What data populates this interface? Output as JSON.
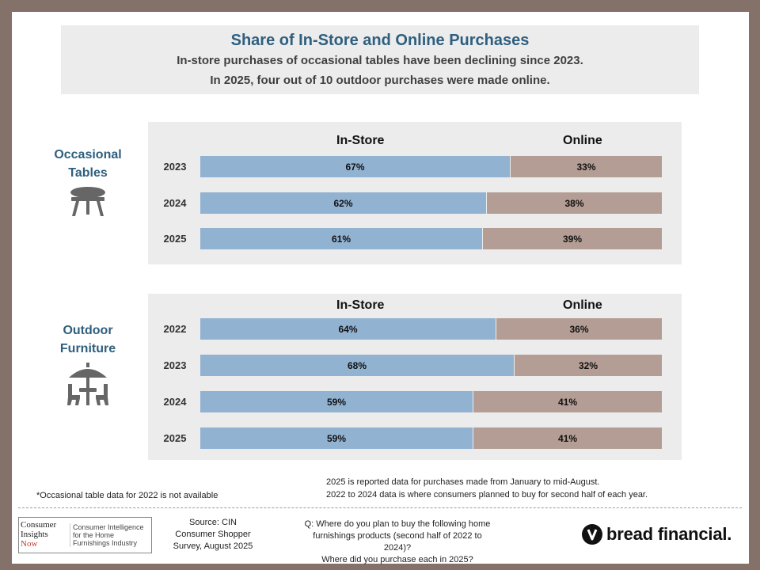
{
  "header": {
    "title": "Share of In-Store and Online Purchases",
    "subtitle_lines": [
      "In-store purchases of occasional tables have been declining since 2023.",
      "In 2025, four out of 10 outdoor purchases were made online."
    ]
  },
  "colors": {
    "in_store": "#92b2d2",
    "online": "#b49d94",
    "accent": "#2e5f7e"
  },
  "chart_data": [
    {
      "type": "bar",
      "stacked": true,
      "orientation": "horizontal",
      "title": "Occasional Tables",
      "title_lines": [
        "Occasional",
        "Tables"
      ],
      "icon": "table-icon",
      "column_headers": {
        "in_store": "In-Store",
        "online": "Online"
      },
      "categories": [
        "2023",
        "2024",
        "2025"
      ],
      "series": [
        {
          "name": "In-Store",
          "values": [
            67,
            62,
            61
          ],
          "labels": [
            "67%",
            "62%",
            "61%"
          ]
        },
        {
          "name": "Online",
          "values": [
            33,
            38,
            39
          ],
          "labels": [
            "33%",
            "38%",
            "39%"
          ]
        }
      ],
      "xlim": [
        0,
        100
      ]
    },
    {
      "type": "bar",
      "stacked": true,
      "orientation": "horizontal",
      "title": "Outdoor Furniture",
      "title_lines": [
        "Outdoor",
        "Furniture"
      ],
      "icon": "patio-set-icon",
      "column_headers": {
        "in_store": "In-Store",
        "online": "Online"
      },
      "categories": [
        "2022",
        "2023",
        "2024",
        "2025"
      ],
      "series": [
        {
          "name": "In-Store",
          "values": [
            64,
            68,
            59,
            59
          ],
          "labels": [
            "64%",
            "68%",
            "59%",
            "59%"
          ]
        },
        {
          "name": "Online",
          "values": [
            36,
            32,
            41,
            41
          ],
          "labels": [
            "36%",
            "32%",
            "41%",
            "41%"
          ]
        }
      ],
      "xlim": [
        0,
        100
      ]
    }
  ],
  "notes": {
    "footnote": "*Occasional table data for 2022 is not available",
    "data_notes": [
      "2025 is reported data for purchases made from January to mid-August.",
      "2022 to 2024 data is where consumers planned to buy for second half of each year."
    ]
  },
  "footer": {
    "cin_logo_lines": [
      "Consumer",
      "Insights",
      "Now"
    ],
    "cin_tagline_lines": [
      "Consumer Intelligence",
      "for the Home",
      "Furnishings Industry"
    ],
    "source_lines": [
      "Source: CIN",
      "Consumer Shopper",
      "Survey, August 2025"
    ],
    "question_lines": [
      "Q: Where do you plan to buy the following home",
      "furnishings products (second half of 2022 to 2024)?",
      "Where did you purchase each in 2025?"
    ],
    "brand_name": "bread financial."
  }
}
